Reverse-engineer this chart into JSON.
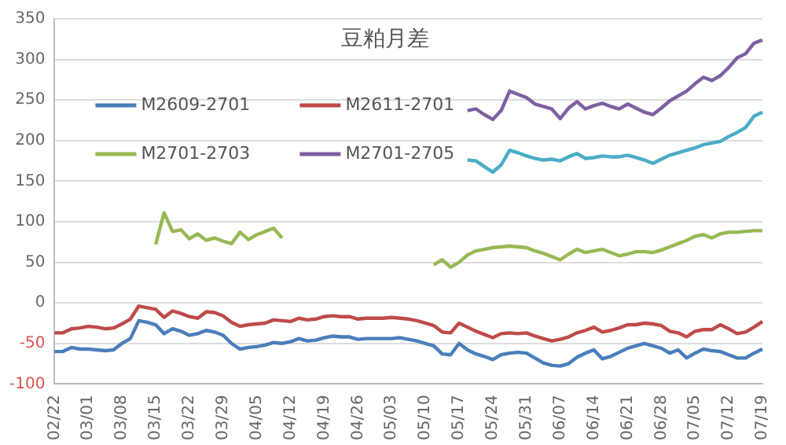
{
  "chart_data": {
    "type": "line",
    "title": "豆粕月差",
    "categories": [
      "02/22",
      null,
      null,
      null,
      "03/01",
      null,
      null,
      null,
      "03/08",
      null,
      null,
      null,
      "03/15",
      null,
      null,
      null,
      "03/22",
      null,
      null,
      null,
      "03/29",
      null,
      null,
      null,
      "04/05",
      null,
      null,
      null,
      "04/12",
      null,
      null,
      null,
      "04/19",
      null,
      null,
      null,
      "04/26",
      null,
      null,
      null,
      "05/03",
      null,
      null,
      null,
      "05/10",
      null,
      null,
      null,
      "05/17",
      null,
      null,
      null,
      "05/24",
      null,
      null,
      null,
      "05/31",
      null,
      null,
      null,
      "06/07",
      null,
      null,
      null,
      "06/14",
      null,
      null,
      null,
      "06/21",
      null,
      null,
      null,
      "06/28",
      null,
      null,
      null,
      "07/05",
      null,
      null,
      null,
      "07/12",
      null,
      null,
      null,
      "07/19"
    ],
    "series": [
      {
        "name": "M2609-2701",
        "color": "#4a7ebb",
        "values": [
          -60,
          -60,
          -55,
          -57,
          -57,
          -58,
          -59,
          -58,
          -50,
          -44,
          -22,
          -24,
          -27,
          -38,
          -32,
          -35,
          -40,
          -38,
          -34,
          -36,
          -40,
          -50,
          -57,
          -55,
          -54,
          -52,
          -49,
          -50,
          -48,
          -44,
          -47,
          -46,
          -43,
          -41,
          -42,
          -42,
          -45,
          -44,
          -44,
          -44,
          -44,
          -43,
          -45,
          -47,
          -50,
          -53,
          -63,
          -64,
          -50,
          -58,
          -63,
          -66,
          -70,
          -64,
          -62,
          -61,
          -62,
          -68,
          -74,
          -77,
          -78,
          -75,
          -67,
          -62,
          -58,
          -69,
          -66,
          -61,
          -56,
          -53,
          -50,
          -53,
          -56,
          -62,
          -58,
          -68,
          -62,
          -57,
          -59,
          -60,
          -64,
          -68,
          -68,
          -62,
          -57
        ]
      },
      {
        "name": "M2611-2701",
        "color": "#be4b48",
        "values": [
          -37,
          -37,
          -32,
          -31,
          -29,
          -30,
          -32,
          -31,
          -26,
          -20,
          -4,
          -6,
          -8,
          -18,
          -10,
          -13,
          -17,
          -19,
          -11,
          -12,
          -16,
          -24,
          -29,
          -27,
          -26,
          -25,
          -21,
          -22,
          -23,
          -19,
          -21,
          -20,
          -17,
          -16,
          -17,
          -17,
          -20,
          -19,
          -19,
          -19,
          -18,
          -19,
          -20,
          -22,
          -25,
          -28,
          -36,
          -37,
          -25,
          -30,
          -35,
          -39,
          -43,
          -38,
          -37,
          -38,
          -37,
          -41,
          -44,
          -47,
          -45,
          -42,
          -37,
          -34,
          -30,
          -36,
          -34,
          -31,
          -27,
          -27,
          -25,
          -26,
          -28,
          -35,
          -37,
          -42,
          -35,
          -33,
          -33,
          -27,
          -32,
          -38,
          -36,
          -30,
          -23
        ]
      },
      {
        "name": "M2701-2703",
        "color": "#98b954",
        "values": [
          null,
          null,
          null,
          null,
          null,
          null,
          null,
          null,
          null,
          null,
          null,
          null,
          72,
          111,
          88,
          90,
          79,
          85,
          77,
          80,
          76,
          73,
          87,
          78,
          84,
          88,
          92,
          80,
          null,
          null,
          null,
          null,
          null,
          null,
          null,
          null,
          null,
          null,
          null,
          null,
          null,
          null,
          null,
          null,
          null,
          47,
          53,
          44,
          50,
          59,
          64,
          66,
          68,
          69,
          70,
          69,
          68,
          64,
          61,
          57,
          53,
          60,
          66,
          62,
          64,
          66,
          62,
          58,
          60,
          63,
          63,
          62,
          65,
          69,
          73,
          77,
          82,
          84,
          80,
          85,
          87,
          87,
          88,
          89,
          89
        ]
      },
      {
        "name": "M2701-2705",
        "color": "#7d60a0",
        "values": [
          null,
          null,
          null,
          null,
          null,
          null,
          null,
          null,
          null,
          null,
          null,
          null,
          null,
          null,
          null,
          null,
          null,
          null,
          null,
          null,
          null,
          null,
          null,
          null,
          null,
          null,
          null,
          null,
          null,
          null,
          null,
          null,
          null,
          null,
          null,
          null,
          null,
          null,
          null,
          null,
          null,
          null,
          null,
          null,
          null,
          null,
          null,
          null,
          null,
          237,
          239,
          232,
          226,
          237,
          261,
          257,
          253,
          245,
          242,
          239,
          227,
          240,
          248,
          239,
          243,
          246,
          242,
          239,
          245,
          240,
          235,
          232,
          240,
          249,
          255,
          261,
          270,
          278,
          274,
          280,
          290,
          302,
          307,
          320,
          324
        ]
      },
      {
        "color": "#4bacc6",
        "values": [
          null,
          null,
          null,
          null,
          null,
          null,
          null,
          null,
          null,
          null,
          null,
          null,
          null,
          null,
          null,
          null,
          null,
          null,
          null,
          null,
          null,
          null,
          null,
          null,
          null,
          null,
          null,
          null,
          null,
          null,
          null,
          null,
          null,
          null,
          null,
          null,
          null,
          null,
          null,
          null,
          null,
          null,
          null,
          null,
          null,
          null,
          null,
          null,
          null,
          176,
          175,
          168,
          161,
          170,
          188,
          185,
          181,
          178,
          176,
          177,
          175,
          180,
          184,
          178,
          179,
          181,
          180,
          180,
          182,
          179,
          176,
          172,
          177,
          182,
          185,
          188,
          191,
          195,
          197,
          199,
          205,
          210,
          216,
          230,
          235
        ]
      }
    ],
    "ylim": [
      -100,
      350
    ],
    "yticks": [
      -100,
      -50,
      0,
      50,
      100,
      150,
      200,
      250,
      300,
      350
    ],
    "grid": "y",
    "legend": "top left",
    "marker": "none",
    "line_style": "solid"
  }
}
